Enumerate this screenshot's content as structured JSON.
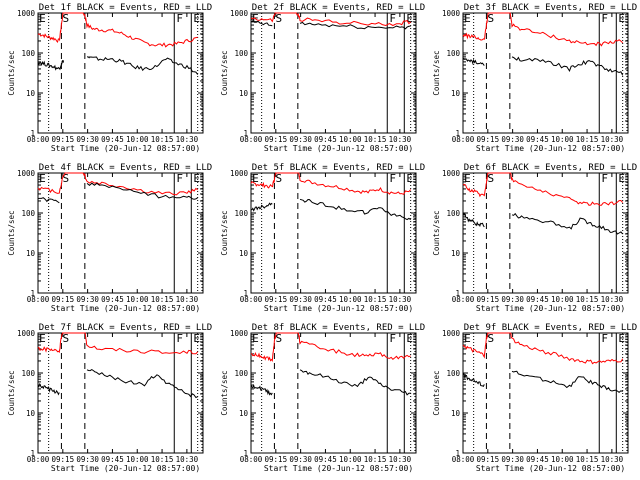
{
  "chart_data": [
    {
      "type": "line",
      "title": "Det 1f BLACK = Events, RED = LLD",
      "xlabel": "Start Time (20-Jun-12 08:57:00)",
      "ylabel": "Counts/sec",
      "ylim": [
        1,
        1000
      ],
      "ylog": true,
      "xlim": [
        0,
        155
      ],
      "xticks": [
        "08:00",
        "09:15",
        "09:30",
        "09:45",
        "10:00",
        "10:15",
        "10:30"
      ],
      "yticks": [
        "1",
        "10",
        "100",
        "1000"
      ],
      "markers": [
        "E",
        "S",
        "F",
        "E"
      ],
      "series": [
        {
          "color": "#ff0000",
          "x": [
            0,
            5,
            10,
            15,
            20,
            22,
            24,
            30,
            40,
            44,
            46,
            52,
            60,
            70,
            80,
            90,
            100,
            110,
            120,
            130,
            140,
            150
          ],
          "y": [
            300,
            280,
            250,
            230,
            200,
            500,
            1200,
            1200,
            1200,
            900,
            500,
            400,
            380,
            360,
            300,
            230,
            180,
            160,
            160,
            170,
            200,
            240
          ]
        },
        {
          "color": "#000000",
          "x": [
            0,
            5,
            10,
            15,
            20,
            22,
            24,
            44,
            46,
            50,
            60,
            70,
            80,
            90,
            100,
            110,
            120,
            130,
            140,
            150
          ],
          "y": [
            60,
            55,
            50,
            45,
            40,
            55,
            65,
            null,
            80,
            75,
            70,
            70,
            60,
            45,
            40,
            45,
            70,
            55,
            45,
            30
          ]
        }
      ]
    },
    {
      "type": "line",
      "title": "Det 2f BLACK = Events, RED = LLD",
      "xlabel": "Start Time (20-Jun-12 08:57:00)",
      "ylabel": "Counts/sec",
      "ylim": [
        1,
        1000
      ],
      "ylog": true,
      "xlim": [
        0,
        155
      ],
      "xticks": [
        "08:00",
        "09:15",
        "09:30",
        "09:45",
        "10:00",
        "10:15",
        "10:30"
      ],
      "yticks": [
        "1",
        "10",
        "100",
        "1000"
      ],
      "markers": [
        "E",
        "S",
        "F",
        "E"
      ],
      "series": [
        {
          "color": "#ff0000",
          "x": [
            0,
            10,
            20,
            24,
            28,
            40,
            44,
            46,
            60,
            80,
            100,
            120,
            140,
            150
          ],
          "y": [
            750,
            700,
            650,
            1200,
            1200,
            1200,
            900,
            700,
            650,
            600,
            550,
            520,
            550,
            620
          ]
        },
        {
          "color": "#000000",
          "x": [
            0,
            10,
            20,
            44,
            46,
            60,
            80,
            100,
            120,
            140,
            150
          ],
          "y": [
            600,
            550,
            480,
            null,
            550,
            520,
            480,
            450,
            430,
            450,
            450
          ]
        }
      ]
    },
    {
      "type": "line",
      "title": "Det 3f BLACK = Events, RED = LLD",
      "xlabel": "Start Time (20-Jun-12 08:57:00)",
      "ylabel": "Counts/sec",
      "ylim": [
        1,
        1000
      ],
      "ylog": true,
      "xlim": [
        0,
        155
      ],
      "xticks": [
        "08:00",
        "09:15",
        "09:30",
        "09:45",
        "10:00",
        "10:15",
        "10:30"
      ],
      "yticks": [
        "1",
        "10",
        "100",
        "1000"
      ],
      "markers": [
        "E",
        "S",
        "F",
        "E"
      ],
      "series": [
        {
          "color": "#ff0000",
          "x": [
            0,
            5,
            10,
            15,
            20,
            22,
            24,
            44,
            46,
            55,
            70,
            85,
            100,
            110,
            120,
            130,
            140,
            150
          ],
          "y": [
            280,
            270,
            250,
            230,
            210,
            500,
            1200,
            1200,
            500,
            400,
            320,
            260,
            200,
            180,
            170,
            170,
            180,
            200
          ]
        },
        {
          "color": "#000000",
          "x": [
            0,
            5,
            10,
            15,
            20,
            44,
            46,
            55,
            70,
            85,
            100,
            110,
            120,
            130,
            140,
            150
          ],
          "y": [
            70,
            65,
            60,
            55,
            50,
            null,
            80,
            70,
            65,
            55,
            40,
            55,
            60,
            45,
            35,
            30
          ]
        }
      ]
    },
    {
      "type": "line",
      "title": "Det 4f BLACK = Events, RED = LLD",
      "xlabel": "Start Time (20-Jun-12 08:57:00)",
      "ylabel": "Counts/sec",
      "ylim": [
        1,
        1000
      ],
      "ylog": true,
      "xlim": [
        0,
        155
      ],
      "xticks": [
        "08:00",
        "09:15",
        "09:30",
        "09:45",
        "10:00",
        "10:15",
        "10:30"
      ],
      "yticks": [
        "1",
        "10",
        "100",
        "1000"
      ],
      "markers": [
        "E",
        "S",
        "F",
        "E"
      ],
      "series": [
        {
          "color": "#ff0000",
          "x": [
            0,
            10,
            20,
            24,
            28,
            40,
            44,
            46,
            60,
            80,
            100,
            120,
            140,
            150
          ],
          "y": [
            420,
            380,
            330,
            900,
            1200,
            1200,
            900,
            600,
            550,
            450,
            350,
            300,
            330,
            380
          ]
        },
        {
          "color": "#000000",
          "x": [
            0,
            10,
            20,
            44,
            46,
            60,
            80,
            100,
            120,
            140,
            150
          ],
          "y": [
            230,
            210,
            180,
            null,
            550,
            500,
            400,
            300,
            250,
            240,
            250
          ]
        }
      ]
    },
    {
      "type": "line",
      "title": "Det 5f BLACK = Events, RED = LLD",
      "xlabel": "Start Time (20-Jun-12 08:57:00)",
      "ylabel": "Counts/sec",
      "ylim": [
        1,
        1000
      ],
      "ylog": true,
      "xlim": [
        0,
        155
      ],
      "xticks": [
        "08:00",
        "09:15",
        "09:30",
        "09:45",
        "10:00",
        "10:15",
        "10:30"
      ],
      "yticks": [
        "1",
        "10",
        "100",
        "1000"
      ],
      "markers": [
        "E",
        "S",
        "F",
        "E"
      ],
      "series": [
        {
          "color": "#ff0000",
          "x": [
            0,
            5,
            10,
            15,
            20,
            22,
            24,
            44,
            46,
            55,
            70,
            85,
            100,
            110,
            120,
            130,
            140,
            150
          ],
          "y": [
            550,
            530,
            500,
            480,
            460,
            700,
            1200,
            1200,
            700,
            600,
            500,
            430,
            350,
            330,
            400,
            330,
            300,
            350
          ]
        },
        {
          "color": "#000000",
          "x": [
            0,
            5,
            10,
            15,
            20,
            44,
            46,
            55,
            70,
            85,
            100,
            110,
            120,
            130,
            140,
            150
          ],
          "y": [
            120,
            130,
            140,
            150,
            180,
            null,
            220,
            200,
            160,
            130,
            110,
            100,
            140,
            100,
            80,
            70
          ]
        }
      ]
    },
    {
      "type": "line",
      "title": "Det 6f BLACK = Events, RED = LLD",
      "xlabel": "Start Time (20-Jun-12 08:57:00)",
      "ylabel": "Counts/sec",
      "ylim": [
        1,
        1000
      ],
      "ylog": true,
      "xlim": [
        0,
        155
      ],
      "xticks": [
        "08:00",
        "09:15",
        "09:30",
        "09:45",
        "10:00",
        "10:15",
        "10:30"
      ],
      "yticks": [
        "1",
        "10",
        "100",
        "1000"
      ],
      "markers": [
        "E",
        "S",
        "F",
        "E"
      ],
      "series": [
        {
          "color": "#ff0000",
          "x": [
            0,
            5,
            10,
            15,
            20,
            22,
            24,
            44,
            46,
            55,
            70,
            85,
            100,
            110,
            120,
            130,
            140,
            150
          ],
          "y": [
            500,
            400,
            350,
            300,
            280,
            600,
            1200,
            1200,
            700,
            500,
            380,
            300,
            220,
            180,
            170,
            170,
            180,
            190
          ]
        },
        {
          "color": "#000000",
          "x": [
            0,
            5,
            10,
            15,
            20,
            44,
            46,
            55,
            70,
            85,
            100,
            110,
            120,
            130,
            140,
            150
          ],
          "y": [
            100,
            70,
            60,
            50,
            50,
            null,
            90,
            80,
            70,
            55,
            40,
            70,
            55,
            45,
            35,
            30
          ]
        }
      ]
    },
    {
      "type": "line",
      "title": "Det 7f BLACK = Events, RED = LLD",
      "xlabel": "Start Time (20-Jun-12 08:57:00)",
      "ylabel": "Counts/sec",
      "ylim": [
        1,
        1000
      ],
      "ylog": true,
      "xlim": [
        0,
        155
      ],
      "xticks": [
        "08:00",
        "09:15",
        "09:30",
        "09:45",
        "10:00",
        "10:15",
        "10:30"
      ],
      "yticks": [
        "1",
        "10",
        "100",
        "1000"
      ],
      "markers": [
        "E",
        "S",
        "F",
        "E"
      ],
      "series": [
        {
          "color": "#ff0000",
          "x": [
            0,
            5,
            10,
            15,
            20,
            22,
            24,
            44,
            46,
            60,
            80,
            100,
            120,
            140,
            150
          ],
          "y": [
            420,
            400,
            380,
            360,
            350,
            800,
            1200,
            1200,
            500,
            400,
            380,
            350,
            320,
            330,
            340
          ]
        },
        {
          "color": "#000000",
          "x": [
            0,
            5,
            10,
            15,
            20,
            44,
            46,
            55,
            70,
            85,
            100,
            110,
            120,
            130,
            140,
            150
          ],
          "y": [
            50,
            45,
            40,
            35,
            30,
            null,
            120,
            100,
            80,
            60,
            50,
            90,
            60,
            40,
            30,
            25
          ]
        }
      ]
    },
    {
      "type": "line",
      "title": "Det 8f BLACK = Events, RED = LLD",
      "xlabel": "Start Time (20-Jun-12 08:57:00)",
      "ylabel": "Counts/sec",
      "ylim": [
        1,
        1000
      ],
      "ylog": true,
      "xlim": [
        0,
        155
      ],
      "xticks": [
        "08:00",
        "09:15",
        "09:30",
        "09:45",
        "10:00",
        "10:15",
        "10:30"
      ],
      "yticks": [
        "1",
        "10",
        "100",
        "1000"
      ],
      "markers": [
        "E",
        "S",
        "F",
        "E"
      ],
      "series": [
        {
          "color": "#ff0000",
          "x": [
            0,
            5,
            10,
            15,
            20,
            22,
            24,
            44,
            46,
            55,
            70,
            85,
            100,
            110,
            120,
            130,
            140,
            150
          ],
          "y": [
            300,
            280,
            260,
            240,
            220,
            600,
            1200,
            1200,
            600,
            500,
            400,
            330,
            280,
            260,
            300,
            250,
            240,
            260
          ]
        },
        {
          "color": "#000000",
          "x": [
            0,
            5,
            10,
            15,
            20,
            44,
            46,
            55,
            70,
            85,
            100,
            110,
            120,
            130,
            140,
            150
          ],
          "y": [
            50,
            45,
            40,
            35,
            30,
            null,
            120,
            100,
            80,
            60,
            45,
            80,
            55,
            40,
            35,
            30
          ]
        }
      ]
    },
    {
      "type": "line",
      "title": "Det 9f BLACK = Events, RED = LLD",
      "xlabel": "Start Time (20-Jun-12 08:57:00)",
      "ylabel": "Counts/sec",
      "ylim": [
        1,
        1000
      ],
      "ylog": true,
      "xlim": [
        0,
        155
      ],
      "xticks": [
        "08:00",
        "09:15",
        "09:30",
        "09:45",
        "10:00",
        "10:15",
        "10:30"
      ],
      "yticks": [
        "1",
        "10",
        "100",
        "1000"
      ],
      "markers": [
        "E",
        "S",
        "F",
        "E"
      ],
      "series": [
        {
          "color": "#ff0000",
          "x": [
            0,
            5,
            10,
            15,
            20,
            22,
            24,
            44,
            46,
            55,
            70,
            85,
            100,
            110,
            120,
            130,
            140,
            150
          ],
          "y": [
            500,
            420,
            360,
            320,
            280,
            700,
            1200,
            1200,
            700,
            500,
            380,
            300,
            230,
            200,
            190,
            190,
            200,
            210
          ]
        },
        {
          "color": "#000000",
          "x": [
            0,
            5,
            10,
            15,
            20,
            44,
            46,
            55,
            70,
            85,
            100,
            110,
            120,
            130,
            140,
            150
          ],
          "y": [
            90,
            75,
            65,
            55,
            50,
            null,
            110,
            90,
            75,
            60,
            45,
            80,
            60,
            45,
            38,
            32
          ]
        }
      ]
    }
  ]
}
